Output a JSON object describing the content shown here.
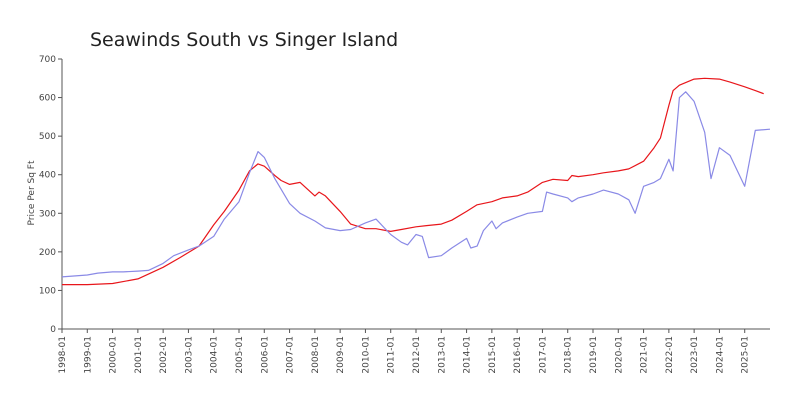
{
  "chart_data": {
    "type": "line",
    "title": "Seawinds South vs Singer Island",
    "ylabel": "Price Per Sq Ft",
    "xlabel": "",
    "ylim": [
      0,
      700
    ],
    "yticks": [
      0,
      100,
      200,
      300,
      400,
      500,
      600,
      700
    ],
    "xlim": [
      "1998-01",
      "2026-01"
    ],
    "xtick_labels": [
      "1998-01",
      "1999-01",
      "2000-01",
      "2001-01",
      "2002-01",
      "2003-01",
      "2004-01",
      "2005-01",
      "2006-01",
      "2007-01",
      "2008-01",
      "2009-01",
      "2010-01",
      "2011-01",
      "2012-01",
      "2013-01",
      "2014-01",
      "2015-01",
      "2016-01",
      "2017-01",
      "2018-01",
      "2019-01",
      "2020-01",
      "2021-01",
      "2022-01",
      "2023-01",
      "2024-01",
      "2025-01"
    ],
    "grid": false,
    "legend": "none",
    "series": [
      {
        "color": "#e8161b",
        "points": [
          [
            "1998-01",
            115
          ],
          [
            "1999-01",
            115
          ],
          [
            "2000-01",
            118
          ],
          [
            "2001-01",
            130
          ],
          [
            "2002-01",
            160
          ],
          [
            "2002-09",
            185
          ],
          [
            "2003-06",
            215
          ],
          [
            "2004-01",
            270
          ],
          [
            "2004-06",
            305
          ],
          [
            "2005-01",
            360
          ],
          [
            "2005-06",
            410
          ],
          [
            "2005-10",
            428
          ],
          [
            "2006-01",
            422
          ],
          [
            "2006-06",
            398
          ],
          [
            "2006-09",
            385
          ],
          [
            "2007-01",
            375
          ],
          [
            "2007-06",
            380
          ],
          [
            "2007-09",
            365
          ],
          [
            "2008-01",
            345
          ],
          [
            "2008-03",
            355
          ],
          [
            "2008-06",
            345
          ],
          [
            "2009-01",
            305
          ],
          [
            "2009-06",
            272
          ],
          [
            "2010-01",
            260
          ],
          [
            "2010-06",
            260
          ],
          [
            "2011-01",
            253
          ],
          [
            "2011-06",
            258
          ],
          [
            "2012-01",
            265
          ],
          [
            "2012-06",
            268
          ],
          [
            "2013-01",
            272
          ],
          [
            "2013-06",
            282
          ],
          [
            "2014-01",
            305
          ],
          [
            "2014-06",
            322
          ],
          [
            "2015-01",
            330
          ],
          [
            "2015-06",
            340
          ],
          [
            "2016-01",
            345
          ],
          [
            "2016-06",
            355
          ],
          [
            "2017-01",
            380
          ],
          [
            "2017-06",
            388
          ],
          [
            "2018-01",
            385
          ],
          [
            "2018-03",
            398
          ],
          [
            "2018-06",
            395
          ],
          [
            "2019-01",
            400
          ],
          [
            "2019-06",
            405
          ],
          [
            "2020-01",
            410
          ],
          [
            "2020-06",
            415
          ],
          [
            "2021-01",
            435
          ],
          [
            "2021-06",
            470
          ],
          [
            "2021-09",
            495
          ],
          [
            "2022-01",
            580
          ],
          [
            "2022-03",
            618
          ],
          [
            "2022-06",
            632
          ],
          [
            "2023-01",
            648
          ],
          [
            "2023-06",
            650
          ],
          [
            "2024-01",
            648
          ],
          [
            "2024-06",
            640
          ],
          [
            "2025-01",
            628
          ],
          [
            "2025-06",
            618
          ],
          [
            "2025-10",
            610
          ]
        ]
      },
      {
        "color": "#8a8ae6",
        "points": [
          [
            "1998-01",
            135
          ],
          [
            "1999-01",
            140
          ],
          [
            "1999-06",
            145
          ],
          [
            "2000-01",
            148
          ],
          [
            "2000-06",
            148
          ],
          [
            "2001-01",
            150
          ],
          [
            "2001-06",
            152
          ],
          [
            "2002-01",
            170
          ],
          [
            "2002-06",
            190
          ],
          [
            "2003-01",
            205
          ],
          [
            "2003-06",
            215
          ],
          [
            "2004-01",
            240
          ],
          [
            "2004-06",
            285
          ],
          [
            "2005-01",
            330
          ],
          [
            "2005-06",
            405
          ],
          [
            "2005-10",
            460
          ],
          [
            "2006-01",
            445
          ],
          [
            "2006-06",
            390
          ],
          [
            "2007-01",
            325
          ],
          [
            "2007-06",
            300
          ],
          [
            "2008-01",
            280
          ],
          [
            "2008-06",
            262
          ],
          [
            "2009-01",
            255
          ],
          [
            "2009-06",
            258
          ],
          [
            "2010-01",
            275
          ],
          [
            "2010-06",
            285
          ],
          [
            "2011-01",
            245
          ],
          [
            "2011-06",
            225
          ],
          [
            "2011-09",
            218
          ],
          [
            "2012-01",
            245
          ],
          [
            "2012-04",
            240
          ],
          [
            "2012-07",
            185
          ],
          [
            "2013-01",
            190
          ],
          [
            "2013-06",
            210
          ],
          [
            "2014-01",
            235
          ],
          [
            "2014-03",
            210
          ],
          [
            "2014-06",
            215
          ],
          [
            "2014-09",
            255
          ],
          [
            "2015-01",
            280
          ],
          [
            "2015-03",
            260
          ],
          [
            "2015-06",
            275
          ],
          [
            "2016-01",
            290
          ],
          [
            "2016-06",
            300
          ],
          [
            "2017-01",
            305
          ],
          [
            "2017-03",
            355
          ],
          [
            "2017-06",
            350
          ],
          [
            "2018-01",
            340
          ],
          [
            "2018-03",
            330
          ],
          [
            "2018-06",
            340
          ],
          [
            "2019-01",
            350
          ],
          [
            "2019-06",
            360
          ],
          [
            "2020-01",
            350
          ],
          [
            "2020-06",
            335
          ],
          [
            "2020-09",
            300
          ],
          [
            "2021-01",
            370
          ],
          [
            "2021-06",
            380
          ],
          [
            "2021-09",
            390
          ],
          [
            "2022-01",
            440
          ],
          [
            "2022-03",
            410
          ],
          [
            "2022-06",
            600
          ],
          [
            "2022-09",
            615
          ],
          [
            "2023-01",
            590
          ],
          [
            "2023-06",
            510
          ],
          [
            "2023-09",
            390
          ],
          [
            "2024-01",
            470
          ],
          [
            "2024-06",
            450
          ],
          [
            "2025-01",
            370
          ],
          [
            "2025-06",
            515
          ],
          [
            "2026-01",
            518
          ]
        ]
      }
    ]
  }
}
